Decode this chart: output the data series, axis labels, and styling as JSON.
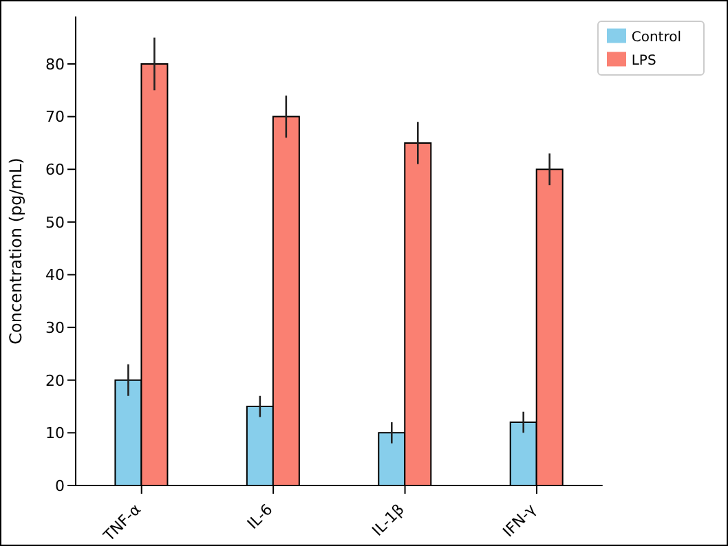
{
  "chart_data": {
    "type": "bar",
    "ylabel": "Concentration (pg/mL)",
    "categories": [
      "TNF-α",
      "IL-6",
      "IL-1β",
      "IFN-γ"
    ],
    "series": [
      {
        "name": "Control",
        "color": "#87ceeb",
        "values": [
          20,
          15,
          10,
          12
        ],
        "errors": [
          3,
          2,
          2,
          2
        ]
      },
      {
        "name": "LPS",
        "color": "#fa8072",
        "values": [
          80,
          70,
          65,
          60
        ],
        "errors": [
          5,
          4,
          4,
          3
        ]
      }
    ],
    "ylim": [
      0,
      89
    ],
    "yticks": [
      0,
      10,
      20,
      30,
      40,
      50,
      60,
      70,
      80
    ],
    "grid": false,
    "legend": "top right"
  }
}
